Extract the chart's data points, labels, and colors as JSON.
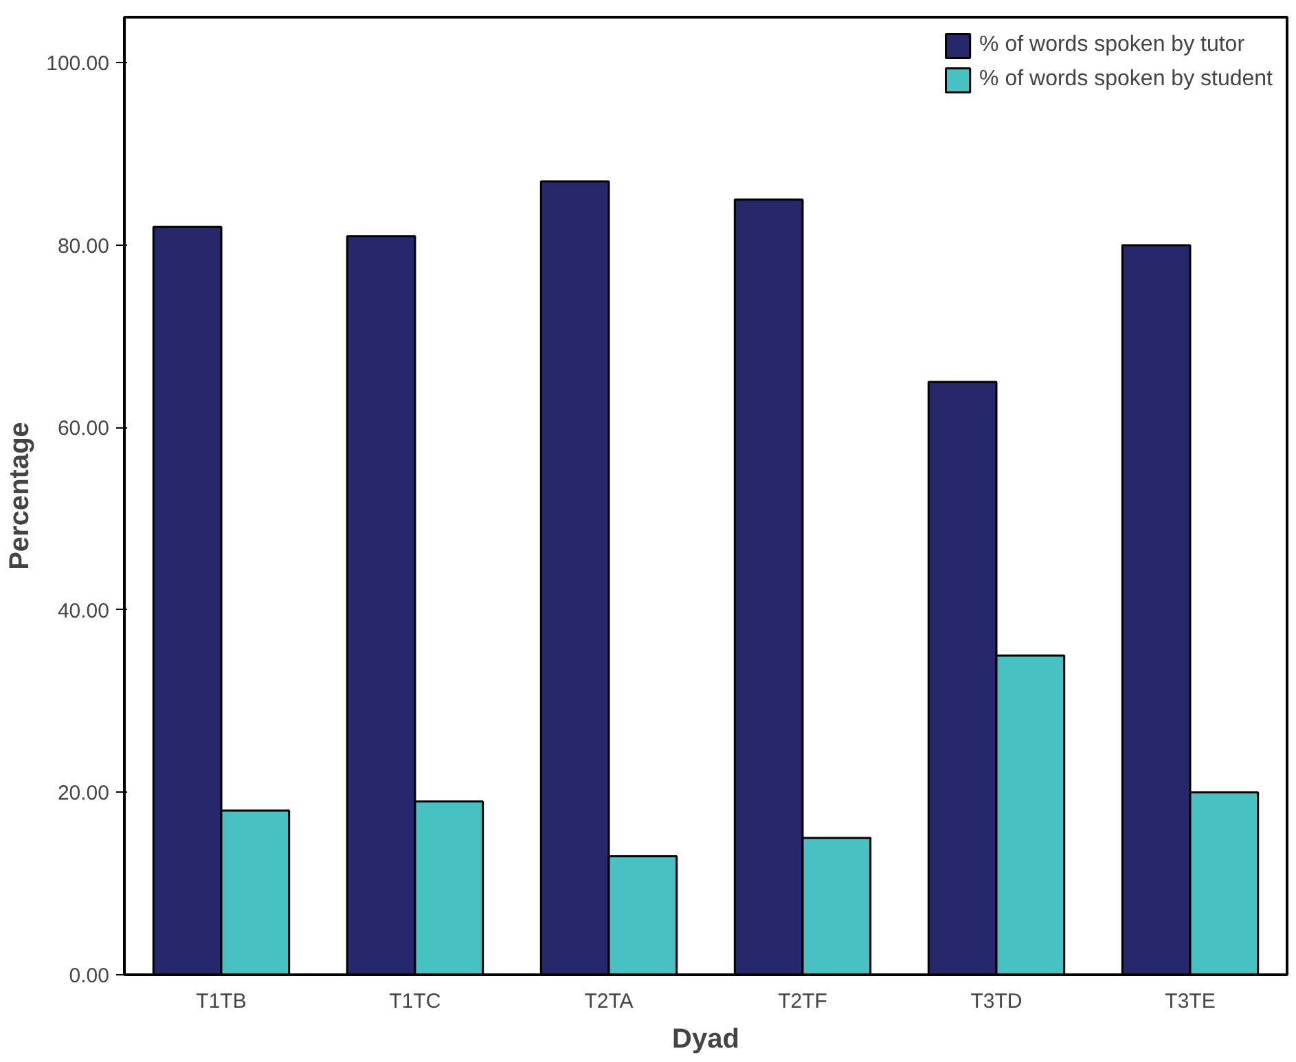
{
  "chart_data": {
    "type": "bar",
    "xlabel": "Dyad",
    "ylabel": "Percentage",
    "categories": [
      "T1TB",
      "T1TC",
      "T2TA",
      "T2TF",
      "T3TD",
      "T3TE"
    ],
    "series": [
      {
        "name": "% of words spoken by tutor",
        "color": "#26286b",
        "values": [
          82,
          81,
          87,
          85,
          65,
          80
        ]
      },
      {
        "name": "% of words spoken by student",
        "color": "#48c1c3",
        "values": [
          18,
          19,
          13,
          15,
          35,
          20
        ]
      }
    ],
    "ylim": [
      0,
      105
    ],
    "yticks": [
      {
        "value": 0,
        "label": "0.00"
      },
      {
        "value": 20,
        "label": "20.00"
      },
      {
        "value": 40,
        "label": "40.00"
      },
      {
        "value": 60,
        "label": "60.00"
      },
      {
        "value": 80,
        "label": "80.00"
      },
      {
        "value": 100,
        "label": "100.00"
      }
    ],
    "grid": false,
    "legend": "top right"
  }
}
